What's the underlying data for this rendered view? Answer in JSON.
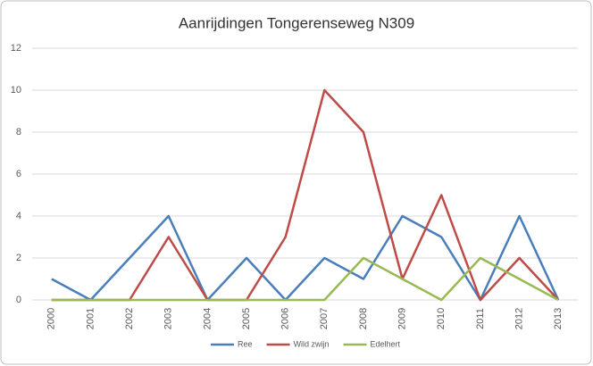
{
  "chart_data": {
    "type": "line",
    "title": "Aanrijdingen Tongerenseweg  N309",
    "categories": [
      "2000",
      "2001",
      "2002",
      "2003",
      "2004",
      "2005",
      "2006",
      "2007",
      "2008",
      "2009",
      "2010",
      "2011",
      "2012",
      "2013"
    ],
    "series": [
      {
        "name": "Ree",
        "color": "#4a7ebb",
        "values": [
          1,
          0,
          2,
          4,
          0,
          2,
          0,
          2,
          1,
          4,
          3,
          0,
          4,
          0
        ]
      },
      {
        "name": "Wild zwijn",
        "color": "#be4b48",
        "values": [
          0,
          0,
          0,
          3,
          0,
          0,
          3,
          10,
          8,
          1,
          5,
          0,
          2,
          0
        ]
      },
      {
        "name": "Edelhert",
        "color": "#98b954",
        "values": [
          0,
          0,
          0,
          0,
          0,
          0,
          0,
          0,
          2,
          1,
          0,
          2,
          1,
          0
        ]
      }
    ],
    "ylim": [
      0,
      12
    ],
    "yticks": [
      0,
      2,
      4,
      6,
      8,
      10,
      12
    ],
    "grid": true,
    "legend": "bottom"
  }
}
